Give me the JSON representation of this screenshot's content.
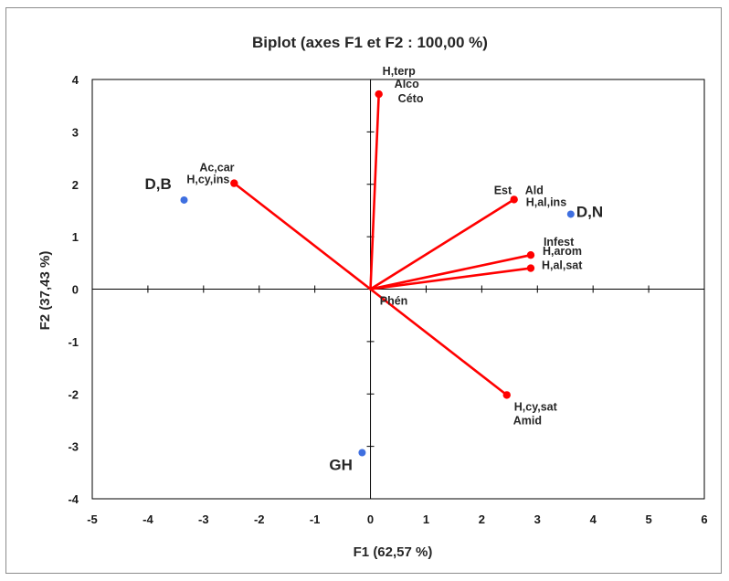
{
  "chart_data": {
    "type": "scatter",
    "title": "Biplot (axes F1 et F2 : 100,00 %)",
    "xlabel": "F1 (62,57 %)",
    "ylabel": "F2 (37,43 %)",
    "xlim": [
      -5,
      6
    ],
    "ylim": [
      -4,
      4
    ],
    "x_ticks": [
      "-5",
      "-4",
      "-3",
      "-2",
      "-1",
      "0",
      "1",
      "2",
      "3",
      "4",
      "5",
      "6"
    ],
    "y_ticks": [
      "-4",
      "-3",
      "-2",
      "-1",
      "0",
      "1",
      "2",
      "3",
      "4"
    ],
    "grid": false,
    "series": [
      {
        "kind": "observations",
        "color": "#3f6fe0",
        "points": [
          {
            "label": "D,B",
            "x": -3.35,
            "y": 1.7
          },
          {
            "label": "D,N",
            "x": 3.6,
            "y": 1.43
          },
          {
            "label": "GH",
            "x": -0.15,
            "y": -3.12
          }
        ]
      },
      {
        "kind": "variables",
        "color": "#ff0000",
        "vectors": [
          {
            "labels": [
              "H,terp",
              "Alco",
              "Céto"
            ],
            "x": 0.15,
            "y": 3.72
          },
          {
            "labels": [
              "Ac,car",
              "H,cy,ins"
            ],
            "x": -2.45,
            "y": 2.02
          },
          {
            "labels": [
              "Est",
              "Ald",
              "H,al,ins"
            ],
            "x": 2.58,
            "y": 1.71
          },
          {
            "labels": [
              "Infest",
              "H,arom"
            ],
            "x": 2.88,
            "y": 0.65
          },
          {
            "labels": [
              "H,al,sat"
            ],
            "x": 2.88,
            "y": 0.4
          },
          {
            "labels": [
              "Phén"
            ],
            "x": 0.02,
            "y": 0.0
          },
          {
            "labels": [
              "H,cy,sat",
              "Amid"
            ],
            "x": 2.45,
            "y": -2.02
          }
        ]
      }
    ]
  }
}
